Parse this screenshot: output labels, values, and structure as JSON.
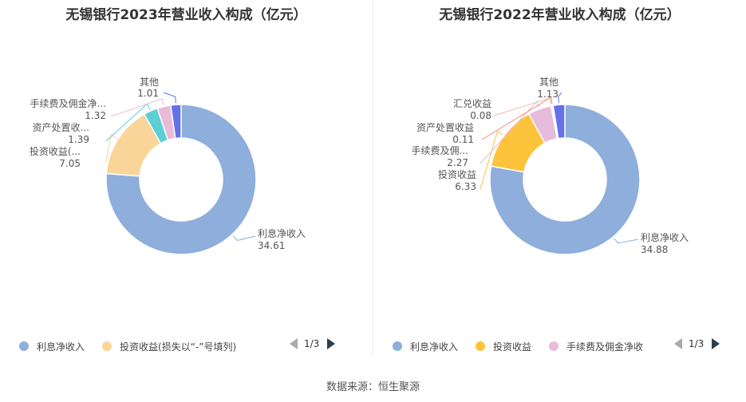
{
  "source": "数据来源：恒生聚源",
  "chart_data": [
    {
      "type": "pie",
      "title": "无锡银行2023年营业收入构成（亿元）",
      "series": [
        {
          "name": "利息净收入",
          "label": "利息净收入",
          "value": 34.61,
          "display": "34.61",
          "color": "#8eaedc"
        },
        {
          "name": "投资收益(损失以“-”号填列)",
          "label": "投资收益(...",
          "value": 7.05,
          "display": "7.05",
          "color": "#f9d59a"
        },
        {
          "name": "资产处置收益",
          "label": "资产处置收...",
          "value": 1.39,
          "display": "1.39",
          "color": "#5ccfd6"
        },
        {
          "name": "手续费及佣金净收入",
          "label": "手续费及佣金净...",
          "value": 1.32,
          "display": "1.32",
          "color": "#eabbd8"
        },
        {
          "name": "其他",
          "label": "其他",
          "value": 1.01,
          "display": "1.01",
          "color": "#6472ea"
        }
      ],
      "legend": {
        "items": [
          {
            "label": "利息净收入",
            "color": "#8eaedc"
          },
          {
            "label": "投资收益(损失以“-”号填列)",
            "color": "#f9d59a"
          }
        ],
        "page": "1/3"
      }
    },
    {
      "type": "pie",
      "title": "无锡银行2022年营业收入构成（亿元）",
      "series": [
        {
          "name": "利息净收入",
          "label": "利息净收入",
          "value": 34.88,
          "display": "34.88",
          "color": "#8eaedc"
        },
        {
          "name": "投资收益",
          "label": "投资收益",
          "value": 6.33,
          "display": "6.33",
          "color": "#fcc33b"
        },
        {
          "name": "手续费及佣金净收入",
          "label": "手续费及佣...",
          "value": 2.27,
          "display": "2.27",
          "color": "#e6bcdc"
        },
        {
          "name": "资产处置收益",
          "label": "资产处置收益",
          "value": 0.11,
          "display": "0.11",
          "color": "#f28888"
        },
        {
          "name": "汇兑收益",
          "label": "汇兑收益",
          "value": 0.08,
          "display": "0.08",
          "color": "#f4b7b7"
        },
        {
          "name": "其他",
          "label": "其他",
          "value": 1.13,
          "display": "1.13",
          "color": "#6472ea"
        }
      ],
      "legend": {
        "items": [
          {
            "label": "利息净收入",
            "color": "#8eaedc"
          },
          {
            "label": "投资收益",
            "color": "#fcc33b"
          },
          {
            "label": "手续费及佣金净收",
            "color": "#e6bcdc"
          }
        ],
        "page": "1/3"
      }
    }
  ]
}
